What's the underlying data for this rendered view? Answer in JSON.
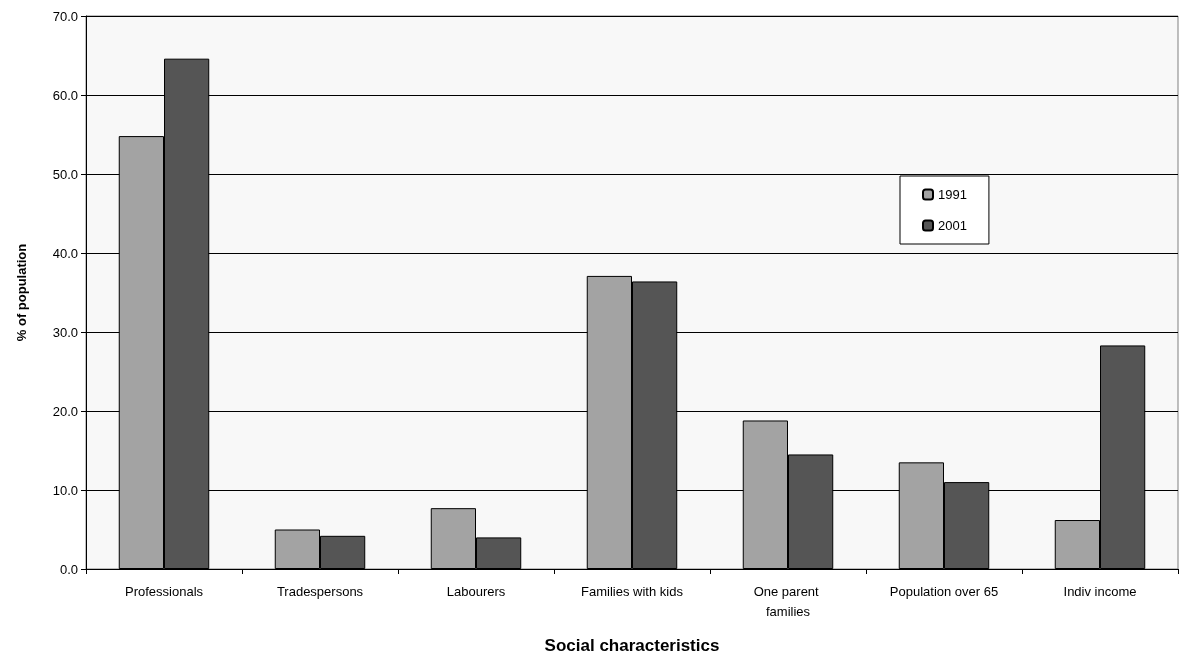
{
  "chart_data": {
    "type": "bar",
    "xlabel": "Social characteristics",
    "ylabel": "% of population",
    "categories": [
      "Professionals",
      "Tradespersons",
      "Labourers",
      "Families with kids",
      "One parent families",
      "Population over 65",
      "Indiv income"
    ],
    "series": [
      {
        "name": "1991",
        "color": "#a3a3a3",
        "values": [
          54.8,
          5.0,
          7.7,
          37.1,
          18.8,
          13.5,
          6.2
        ]
      },
      {
        "name": "2001",
        "color": "#555555",
        "values": [
          64.6,
          4.2,
          4.0,
          36.4,
          14.5,
          11.0,
          28.3
        ]
      }
    ],
    "ylim": [
      0,
      70
    ],
    "yticks": [
      {
        "value": 0,
        "label": "0.0"
      },
      {
        "value": 10,
        "label": "10.0"
      },
      {
        "value": 20,
        "label": "20.0"
      },
      {
        "value": 30,
        "label": "30.0"
      },
      {
        "value": 40,
        "label": "40.0"
      },
      {
        "value": 50,
        "label": "50.0"
      },
      {
        "value": 60,
        "label": "60.0"
      },
      {
        "value": 70,
        "label": "70.0"
      }
    ],
    "grid": "y",
    "legend": "right"
  }
}
